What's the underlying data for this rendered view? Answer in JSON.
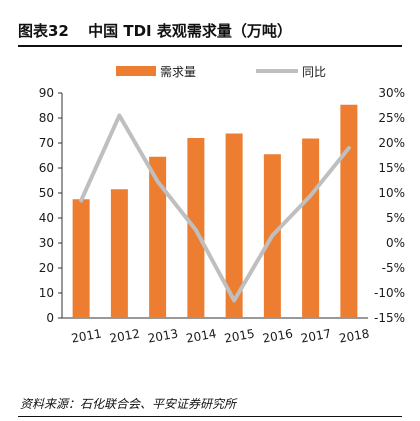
{
  "header": {
    "figure_no": "图表32",
    "title": "中国 TDI 表观需求量（万吨）"
  },
  "source": "资料来源：石化联合会、平安证券研究所",
  "colors": {
    "bar": "#ed7d31",
    "line": "#bfbfbf"
  },
  "chart_data": {
    "type": "bar",
    "categories": [
      "2011",
      "2012",
      "2013",
      "2014",
      "2015",
      "2016",
      "2017",
      "2018"
    ],
    "series": [
      {
        "name": "需求量",
        "type": "bar",
        "axis": "left",
        "values": [
          47.5,
          51.5,
          64.5,
          72,
          73.8,
          65.5,
          71.8,
          85.3
        ]
      },
      {
        "name": "同比",
        "type": "line",
        "axis": "right",
        "values": [
          8.5,
          25.5,
          12.3,
          2.6,
          -11.5,
          1.5,
          9.5,
          19.0
        ],
        "unit": "%"
      }
    ],
    "y_left": {
      "min": 0,
      "max": 90,
      "step": 10,
      "ticks": [
        "0",
        "10",
        "20",
        "30",
        "40",
        "50",
        "60",
        "70",
        "80",
        "90"
      ]
    },
    "y_right": {
      "min": -15,
      "max": 30,
      "step": 5,
      "ticks": [
        "-15%",
        "-10%",
        "-5%",
        "0%",
        "5%",
        "10%",
        "15%",
        "20%",
        "25%",
        "30%"
      ]
    },
    "legend_position": "top-center",
    "grid": false
  }
}
